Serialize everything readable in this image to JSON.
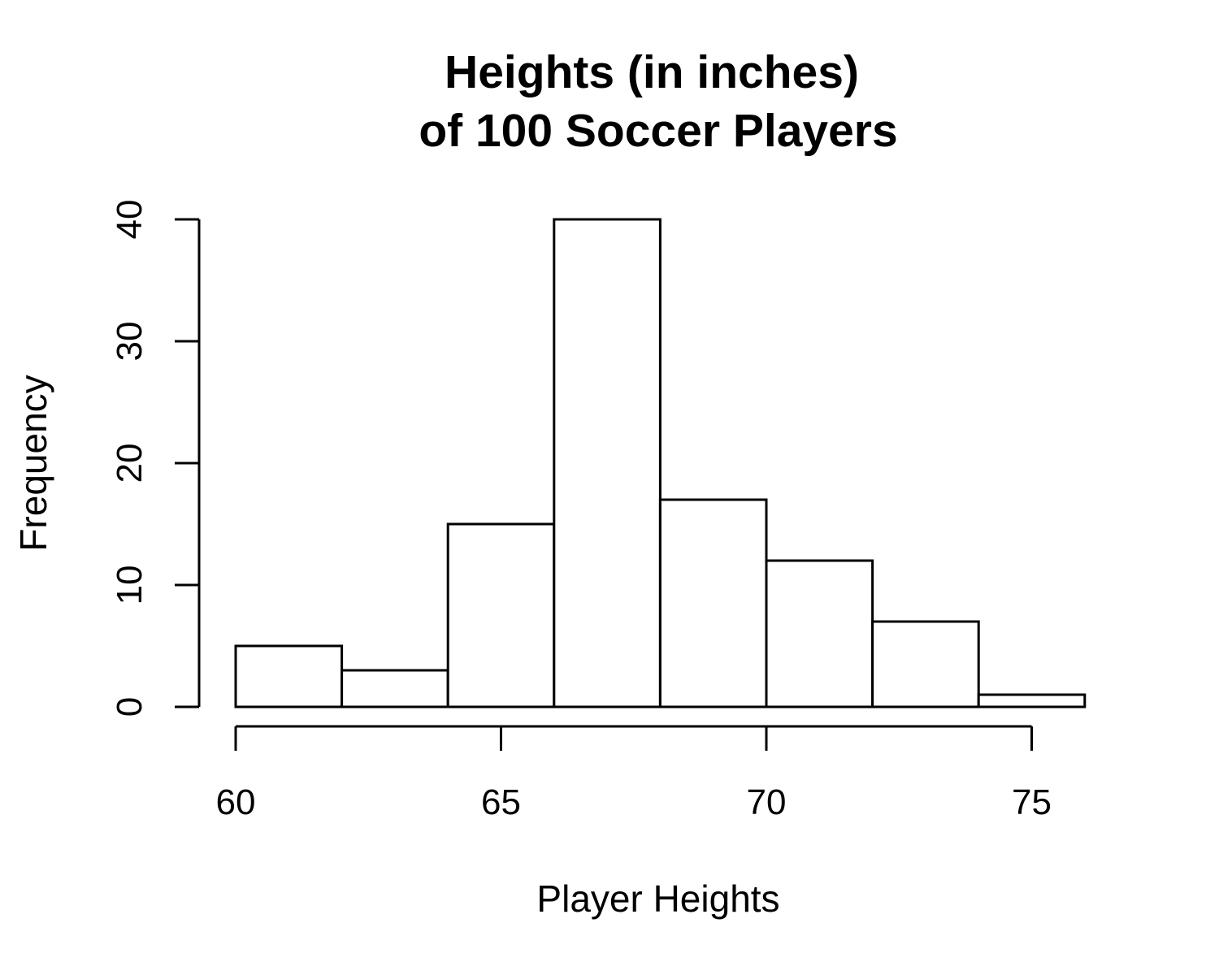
{
  "chart_data": {
    "type": "bar",
    "title": [
      "Heights (in inches)",
      "of 100 Soccer Players"
    ],
    "xlabel": "Player Heights",
    "ylabel": "Frequency",
    "bins": [
      {
        "x0": 60,
        "x1": 62,
        "count": 5
      },
      {
        "x0": 62,
        "x1": 64,
        "count": 3
      },
      {
        "x0": 64,
        "x1": 66,
        "count": 15
      },
      {
        "x0": 66,
        "x1": 68,
        "count": 40
      },
      {
        "x0": 68,
        "x1": 70,
        "count": 17
      },
      {
        "x0": 70,
        "x1": 72,
        "count": 12
      },
      {
        "x0": 72,
        "x1": 74,
        "count": 7
      },
      {
        "x0": 74,
        "x1": 76,
        "count": 1
      }
    ],
    "xlim": [
      60,
      76
    ],
    "ylim": [
      0,
      40
    ],
    "x_ticks": [
      {
        "value": 60,
        "label": "60"
      },
      {
        "value": 65,
        "label": "65"
      },
      {
        "value": 70,
        "label": "70"
      },
      {
        "value": 75,
        "label": "75"
      }
    ],
    "y_ticks": [
      {
        "value": 0,
        "label": "0"
      },
      {
        "value": 10,
        "label": "10"
      },
      {
        "value": 20,
        "label": "20"
      },
      {
        "value": 30,
        "label": "30"
      },
      {
        "value": 40,
        "label": "40"
      }
    ],
    "grid": false,
    "legend": "none",
    "bar_fill": "#ffffff",
    "bar_stroke": "#000000"
  }
}
